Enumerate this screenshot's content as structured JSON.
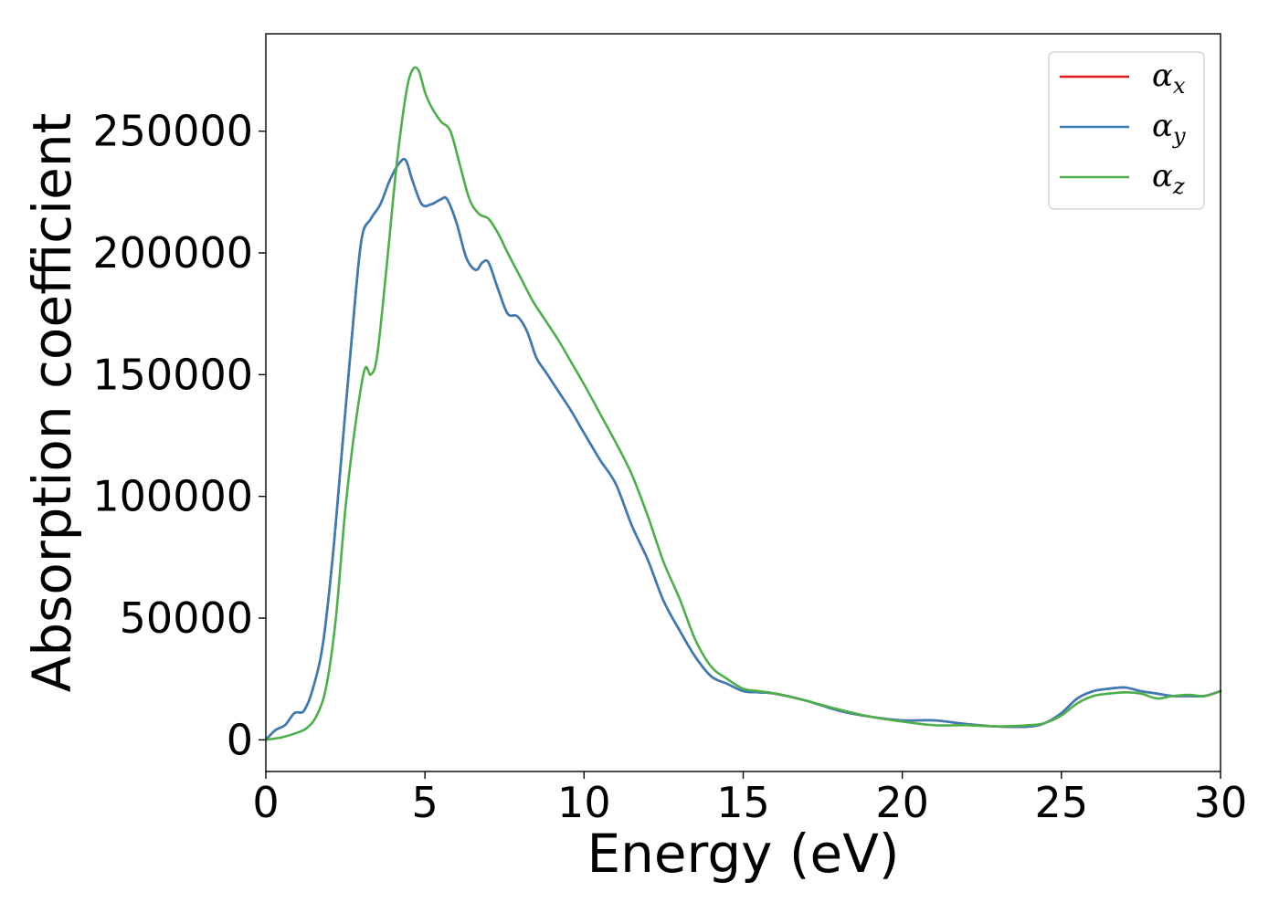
{
  "chart_data": {
    "type": "line",
    "xlabel": "Energy (eV)",
    "ylabel": "Absorption coefficient",
    "xlim": [
      0,
      30
    ],
    "ylim": [
      -13000,
      290000
    ],
    "xticks": [
      0,
      5,
      10,
      15,
      20,
      25,
      30
    ],
    "yticks": [
      0,
      50000,
      100000,
      150000,
      200000,
      250000
    ],
    "grid": false,
    "legend_position": "top-right",
    "series": [
      {
        "name": "α_x",
        "symbol": "α",
        "subscript": "x",
        "color": "#e41a1c",
        "x": [
          0,
          0.3,
          0.6,
          0.9,
          1.2,
          1.5,
          1.8,
          2.1,
          2.4,
          2.7,
          3.0,
          3.3,
          3.6,
          3.9,
          4.2,
          4.4,
          4.6,
          4.9,
          5.2,
          5.5,
          5.7,
          6.0,
          6.3,
          6.6,
          6.8,
          7.0,
          7.3,
          7.6,
          7.9,
          8.2,
          8.5,
          8.8,
          9.2,
          9.6,
          10.0,
          10.5,
          11.0,
          11.5,
          12.0,
          12.5,
          13.0,
          13.5,
          14.0,
          14.5,
          15.0,
          15.5,
          16.0,
          17.0,
          18.0,
          19.0,
          20.0,
          21.0,
          22.0,
          23.0,
          24.0,
          24.5,
          25.0,
          25.5,
          26.0,
          26.5,
          27.0,
          27.5,
          28.0,
          28.5,
          29.0,
          29.5,
          30.0
        ],
        "y": [
          0,
          4000,
          6000,
          11000,
          12000,
          22000,
          40000,
          75000,
          120000,
          165000,
          205000,
          214000,
          220000,
          230000,
          237000,
          238000,
          230000,
          220000,
          220000,
          222000,
          222000,
          212000,
          198000,
          193000,
          196000,
          196000,
          185000,
          175000,
          174000,
          168000,
          157000,
          151000,
          143000,
          135000,
          126000,
          115000,
          105000,
          88000,
          74000,
          57000,
          45000,
          34000,
          26000,
          23000,
          20000,
          19500,
          19000,
          16000,
          12000,
          9500,
          8000,
          8000,
          6500,
          5500,
          5500,
          7000,
          11000,
          17000,
          20000,
          21000,
          21500,
          20000,
          19000,
          18000,
          18000,
          18000,
          20000
        ]
      },
      {
        "name": "α_y",
        "symbol": "α",
        "subscript": "y",
        "color": "#377eb8",
        "x": [
          0,
          0.3,
          0.6,
          0.9,
          1.2,
          1.5,
          1.8,
          2.1,
          2.4,
          2.7,
          3.0,
          3.3,
          3.6,
          3.9,
          4.2,
          4.4,
          4.6,
          4.9,
          5.2,
          5.5,
          5.7,
          6.0,
          6.3,
          6.6,
          6.8,
          7.0,
          7.3,
          7.6,
          7.9,
          8.2,
          8.5,
          8.8,
          9.2,
          9.6,
          10.0,
          10.5,
          11.0,
          11.5,
          12.0,
          12.5,
          13.0,
          13.5,
          14.0,
          14.5,
          15.0,
          15.5,
          16.0,
          17.0,
          18.0,
          19.0,
          20.0,
          21.0,
          22.0,
          23.0,
          24.0,
          24.5,
          25.0,
          25.5,
          26.0,
          26.5,
          27.0,
          27.5,
          28.0,
          28.5,
          29.0,
          29.5,
          30.0
        ],
        "y": [
          0,
          4000,
          6000,
          11000,
          12000,
          22000,
          40000,
          75000,
          120000,
          165000,
          205000,
          214000,
          220000,
          230000,
          237000,
          238000,
          230000,
          220000,
          220000,
          222000,
          222000,
          212000,
          198000,
          193000,
          196000,
          196000,
          185000,
          175000,
          174000,
          168000,
          157000,
          151000,
          143000,
          135000,
          126000,
          115000,
          105000,
          88000,
          74000,
          57000,
          45000,
          34000,
          26000,
          23000,
          20000,
          19500,
          19000,
          16000,
          12000,
          9500,
          8000,
          8000,
          6500,
          5500,
          5500,
          7000,
          11000,
          17000,
          20000,
          21000,
          21500,
          20000,
          19000,
          18000,
          18000,
          18000,
          20000
        ]
      },
      {
        "name": "α_z",
        "symbol": "α",
        "subscript": "z",
        "color": "#4daf4a",
        "x": [
          0,
          0.5,
          1.0,
          1.3,
          1.6,
          1.9,
          2.2,
          2.5,
          2.8,
          3.1,
          3.3,
          3.5,
          3.8,
          4.1,
          4.4,
          4.6,
          4.8,
          5.0,
          5.2,
          5.5,
          5.8,
          6.1,
          6.4,
          6.7,
          7.0,
          7.3,
          7.6,
          8.0,
          8.4,
          8.8,
          9.2,
          9.6,
          10.0,
          10.5,
          11.0,
          11.5,
          12.0,
          12.5,
          13.0,
          13.5,
          14.0,
          14.5,
          15.0,
          15.5,
          16.0,
          17.0,
          18.0,
          19.0,
          20.0,
          21.0,
          22.0,
          23.0,
          24.0,
          24.5,
          25.0,
          25.5,
          26.0,
          26.5,
          27.0,
          27.5,
          28.0,
          28.5,
          29.0,
          29.5,
          30.0
        ],
        "y": [
          0,
          1000,
          3000,
          5000,
          10000,
          22000,
          50000,
          95000,
          128000,
          152000,
          150000,
          158000,
          195000,
          235000,
          265000,
          275000,
          275000,
          266000,
          260000,
          254000,
          250000,
          236000,
          222000,
          216000,
          214000,
          208000,
          200000,
          190000,
          180000,
          172000,
          164000,
          155000,
          146000,
          134000,
          122000,
          109000,
          92000,
          73000,
          58000,
          41000,
          30000,
          25000,
          21000,
          20000,
          19000,
          16000,
          12500,
          9500,
          7500,
          6000,
          6000,
          5500,
          6000,
          7000,
          10000,
          15000,
          18000,
          19000,
          19500,
          19000,
          17000,
          18000,
          18500,
          18000,
          20000
        ]
      }
    ]
  }
}
